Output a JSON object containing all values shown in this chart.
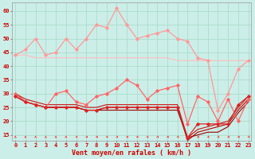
{
  "bg_color": "#cceee8",
  "grid_color": "#aaddcc",
  "xlabel": "Vent moyen/en rafales ( km/h )",
  "y_ticks": [
    15,
    20,
    25,
    30,
    35,
    40,
    45,
    50,
    55,
    60
  ],
  "x_ticks": [
    0,
    1,
    2,
    3,
    4,
    5,
    6,
    7,
    8,
    9,
    10,
    11,
    12,
    13,
    14,
    15,
    16,
    17,
    18,
    19,
    20,
    21,
    22,
    23
  ],
  "ylim": [
    13,
    63
  ],
  "xlim": [
    -0.3,
    23.3
  ],
  "lines": [
    {
      "y": [
        44,
        46,
        50,
        44,
        45,
        50,
        46,
        50,
        55,
        54,
        61,
        55,
        50,
        51,
        52,
        53,
        50,
        49,
        43,
        42,
        24,
        30,
        39,
        42
      ],
      "color": "#ff9999",
      "lw": 0.9,
      "marker": "D",
      "ms": 1.8
    },
    {
      "y": [
        44,
        44,
        43,
        43,
        43,
        43,
        43,
        43,
        43,
        43,
        43,
        43,
        43,
        43,
        43,
        43,
        42,
        42,
        42,
        42,
        42,
        42,
        42,
        42
      ],
      "color": "#ffbbbb",
      "lw": 0.8,
      "marker": null,
      "ms": 0
    },
    {
      "y": [
        30,
        27,
        26,
        25,
        30,
        31,
        27,
        26,
        29,
        30,
        32,
        35,
        33,
        28,
        31,
        32,
        33,
        19,
        29,
        27,
        20,
        28,
        20,
        28
      ],
      "color": "#ff6666",
      "lw": 0.9,
      "marker": "D",
      "ms": 1.8
    },
    {
      "y": [
        29,
        27,
        26,
        25,
        25,
        25,
        25,
        24,
        24,
        25,
        25,
        25,
        25,
        25,
        25,
        25,
        25,
        14,
        19,
        19,
        19,
        19,
        26,
        29
      ],
      "color": "#dd2222",
      "lw": 0.9,
      "marker": "D",
      "ms": 1.8
    },
    {
      "y": [
        29,
        27,
        26,
        25,
        25,
        25,
        25,
        24,
        24,
        25,
        25,
        25,
        25,
        25,
        25,
        25,
        25,
        13,
        16,
        17,
        18,
        19,
        24,
        28
      ],
      "color": "#bb0000",
      "lw": 0.8,
      "marker": null,
      "ms": 0
    },
    {
      "y": [
        30,
        28,
        27,
        26,
        26,
        26,
        26,
        25,
        25,
        26,
        26,
        26,
        26,
        26,
        26,
        26,
        26,
        14,
        17,
        18,
        19,
        20,
        25,
        29
      ],
      "color": "#cc1111",
      "lw": 0.8,
      "marker": null,
      "ms": 0
    },
    {
      "y": [
        30,
        27,
        26,
        25,
        25,
        25,
        25,
        24,
        24,
        24,
        24,
        24,
        24,
        24,
        24,
        24,
        24,
        14,
        15,
        16,
        16,
        18,
        23,
        27
      ],
      "color": "#990000",
      "lw": 0.8,
      "marker": null,
      "ms": 0
    }
  ],
  "tick_fontsize": 5.0,
  "xlabel_fontsize": 6.0,
  "tick_color": "#cc0000",
  "label_color": "#cc0000"
}
